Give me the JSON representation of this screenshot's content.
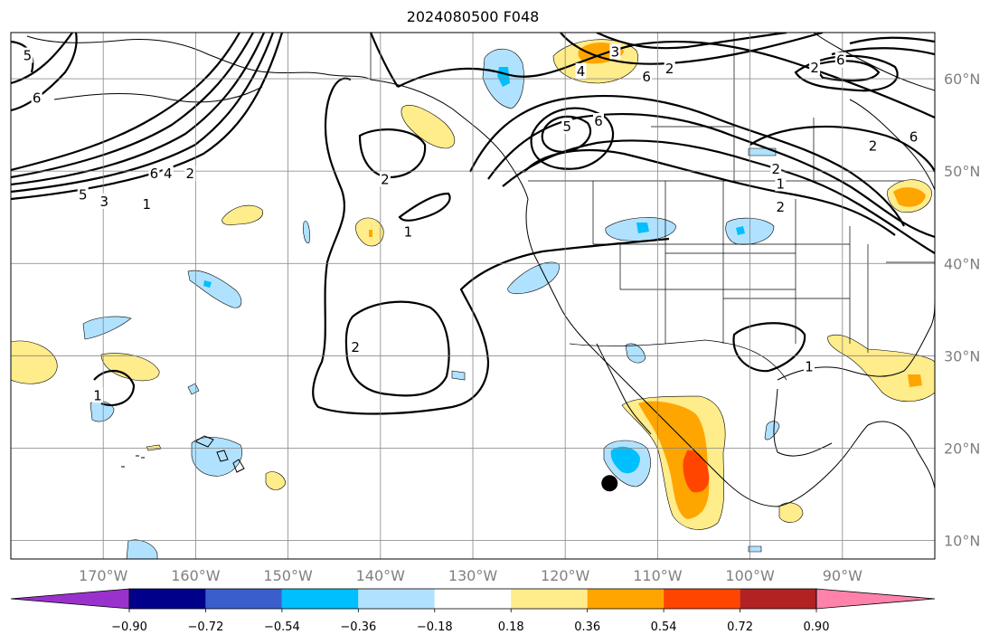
{
  "title": "2024080500 F048",
  "map": {
    "lon_range": [
      -180,
      -80
    ],
    "lat_range": [
      8,
      65
    ],
    "lon_ticks": [
      {
        "value": -170,
        "label": "170°W"
      },
      {
        "value": -160,
        "label": "160°W"
      },
      {
        "value": -150,
        "label": "150°W"
      },
      {
        "value": -140,
        "label": "140°W"
      },
      {
        "value": -130,
        "label": "130°W"
      },
      {
        "value": -120,
        "label": "120°W"
      },
      {
        "value": -110,
        "label": "110°W"
      },
      {
        "value": -100,
        "label": "100°W"
      },
      {
        "value": -90,
        "label": "90°W"
      }
    ],
    "lat_ticks": [
      {
        "value": 60,
        "label": "60°N"
      },
      {
        "value": 50,
        "label": "50°N"
      },
      {
        "value": 40,
        "label": "40°N"
      },
      {
        "value": 30,
        "label": "30°N"
      },
      {
        "value": 20,
        "label": "20°N"
      },
      {
        "value": 10,
        "label": "10°N"
      }
    ],
    "grid": true,
    "marker": {
      "lon": -115.2,
      "lat": 16.2,
      "color": "#000000"
    },
    "contour_labels": [
      {
        "text": "5",
        "lon": -178.2,
        "lat": 62.5
      },
      {
        "text": "6",
        "lon": -177.2,
        "lat": 57.9
      },
      {
        "text": "6",
        "lon": -164.5,
        "lat": 49.7
      },
      {
        "text": "4",
        "lon": -163.0,
        "lat": 49.7
      },
      {
        "text": "2",
        "lon": -160.6,
        "lat": 49.7
      },
      {
        "text": "5",
        "lon": -172.2,
        "lat": 47.4
      },
      {
        "text": "3",
        "lon": -169.9,
        "lat": 46.7
      },
      {
        "text": "1",
        "lon": -165.3,
        "lat": 46.4
      },
      {
        "text": "2",
        "lon": -139.5,
        "lat": 49.1
      },
      {
        "text": "1",
        "lon": -137.0,
        "lat": 43.4
      },
      {
        "text": "2",
        "lon": -142.7,
        "lat": 30.9
      },
      {
        "text": "3",
        "lon": -114.6,
        "lat": 62.9
      },
      {
        "text": "4",
        "lon": -118.3,
        "lat": 60.8
      },
      {
        "text": "6",
        "lon": -111.2,
        "lat": 60.2
      },
      {
        "text": "6",
        "lon": -116.4,
        "lat": 55.4
      },
      {
        "text": "5",
        "lon": -119.8,
        "lat": 54.8
      },
      {
        "text": "2",
        "lon": -108.7,
        "lat": 61.1
      },
      {
        "text": "2",
        "lon": -97.2,
        "lat": 50.2
      },
      {
        "text": "1",
        "lon": -96.7,
        "lat": 48.6
      },
      {
        "text": "2",
        "lon": -96.7,
        "lat": 46.1
      },
      {
        "text": "1",
        "lon": -93.6,
        "lat": 28.8
      },
      {
        "text": "6",
        "lon": -90.2,
        "lat": 62.0
      },
      {
        "text": "2",
        "lon": -93.0,
        "lat": 61.2
      },
      {
        "text": "6",
        "lon": -82.3,
        "lat": 53.7
      },
      {
        "text": "2",
        "lon": -86.7,
        "lat": 52.7
      },
      {
        "text": "1",
        "lon": -170.6,
        "lat": 25.7
      }
    ]
  },
  "colorbar": {
    "levels": [
      "−0.90",
      "−0.72",
      "−0.54",
      "−0.36",
      "−0.18",
      "0.18",
      "0.36",
      "0.54",
      "0.72",
      "0.90"
    ],
    "colors": [
      "#9932CC",
      "#00008B",
      "#3A5FCD",
      "#00BFFF",
      "#B0E2FF",
      "#FFFFFF",
      "#FFEC8B",
      "#FFA500",
      "#FF4500",
      "#B22222",
      "#FF82AB"
    ],
    "extend": "both"
  }
}
